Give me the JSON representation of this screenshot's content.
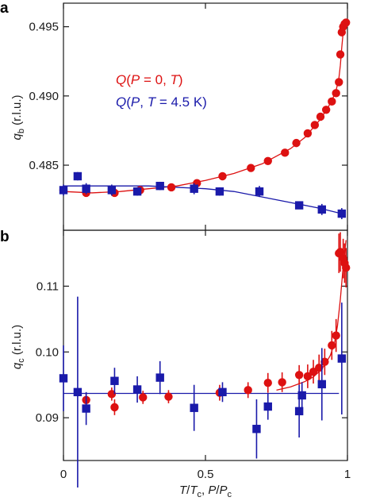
{
  "colors": {
    "red": "#dd1111",
    "blue": "#1a1aaa",
    "axis": "#1a1a1a"
  },
  "chart_data": [
    {
      "panel": "a",
      "type": "scatter",
      "ylabel_main": "q",
      "ylabel_sub": "b",
      "ylabel_unit": " (r.l.u.)",
      "xlim": [
        0,
        1.0
      ],
      "ylim": [
        0.4803,
        0.4967
      ],
      "yticks": [
        0.485,
        0.49,
        0.495
      ],
      "ytick_labels": [
        "0.485",
        "0.490",
        "0.495"
      ],
      "legend_position": "center-left",
      "series": [
        {
          "name": "Q(P = 0, T)",
          "legend_parts": [
            "Q",
            "(",
            "P",
            " = 0, ",
            "T",
            ")"
          ],
          "color": "#dd1111",
          "marker": "circle",
          "x": [
            0.0,
            0.08,
            0.18,
            0.27,
            0.38,
            0.47,
            0.56,
            0.66,
            0.72,
            0.78,
            0.82,
            0.86,
            0.885,
            0.905,
            0.925,
            0.945,
            0.96,
            0.97,
            0.975,
            0.98,
            0.985,
            0.99,
            0.995
          ],
          "y": [
            0.4832,
            0.483,
            0.483,
            0.4832,
            0.4834,
            0.4837,
            0.4842,
            0.4848,
            0.4853,
            0.4859,
            0.4866,
            0.4873,
            0.4879,
            0.4885,
            0.489,
            0.4896,
            0.4902,
            0.491,
            0.493,
            0.4946,
            0.495,
            0.4952,
            0.4953
          ],
          "fit_x": [
            0.0,
            0.1,
            0.2,
            0.3,
            0.4,
            0.5,
            0.6,
            0.7,
            0.8,
            0.85,
            0.9,
            0.93,
            0.95,
            0.96,
            0.97,
            0.975,
            0.98,
            0.985,
            0.99,
            0.995
          ],
          "fit_y": [
            0.4831,
            0.483,
            0.4831,
            0.4833,
            0.4835,
            0.4839,
            0.4844,
            0.4851,
            0.4862,
            0.487,
            0.4882,
            0.4891,
            0.4899,
            0.4904,
            0.4913,
            0.4922,
            0.4935,
            0.4946,
            0.4951,
            0.4953
          ]
        },
        {
          "name": "Q(P, T = 4.5 K)",
          "legend_parts": [
            "Q",
            "(",
            "P",
            ", ",
            "T",
            " = 4.5 K)"
          ],
          "color": "#1a1aaa",
          "marker": "square",
          "x": [
            0.0,
            0.05,
            0.08,
            0.17,
            0.26,
            0.34,
            0.46,
            0.55,
            0.69,
            0.83,
            0.91,
            0.98
          ],
          "y": [
            0.4832,
            0.4842,
            0.4833,
            0.4832,
            0.4831,
            0.4835,
            0.4833,
            0.4831,
            0.4831,
            0.4821,
            0.4818,
            0.4815
          ],
          "yerr": [
            0.0004,
            0.0003,
            0.0004,
            0.0004,
            0.0003,
            0.0003,
            0.0004,
            0.0003,
            0.0004,
            0.0002,
            0.0004,
            0.0004
          ],
          "fit_x": [
            0.0,
            0.1,
            0.2,
            0.3,
            0.4,
            0.5,
            0.6,
            0.7,
            0.8,
            0.9,
            0.98
          ],
          "fit_y": [
            0.4835,
            0.4835,
            0.4835,
            0.4835,
            0.4834,
            0.4833,
            0.4831,
            0.4827,
            0.4823,
            0.4819,
            0.4815
          ]
        }
      ]
    },
    {
      "panel": "b",
      "type": "scatter",
      "ylabel_main": "q",
      "ylabel_sub": "c",
      "ylabel_unit": " (r.l.u.)",
      "xlabel_parts": [
        "T",
        "/",
        "T",
        "c",
        ", ",
        "P",
        "/",
        "P",
        "c"
      ],
      "xlim": [
        0,
        1.0
      ],
      "ylim": [
        0.0835,
        0.1185
      ],
      "yticks": [
        0.09,
        0.1,
        0.11
      ],
      "ytick_labels": [
        "0.09",
        "0.10",
        "0.11"
      ],
      "xticks": [
        0,
        0.5,
        1
      ],
      "xtick_labels": [
        "0",
        "0.5",
        "1"
      ],
      "series": [
        {
          "name": "red",
          "color": "#dd1111",
          "marker": "circle",
          "x": [
            0.08,
            0.17,
            0.18,
            0.28,
            0.37,
            0.55,
            0.65,
            0.72,
            0.77,
            0.83,
            0.86,
            0.88,
            0.9,
            0.92,
            0.945,
            0.96,
            0.97,
            0.975,
            0.985,
            0.99,
            0.995
          ],
          "y": [
            0.0927,
            0.0936,
            0.0916,
            0.0931,
            0.0932,
            0.0938,
            0.0942,
            0.0953,
            0.0954,
            0.0965,
            0.0963,
            0.097,
            0.0976,
            0.0985,
            0.101,
            0.1025,
            0.115,
            0.1152,
            0.1142,
            0.1135,
            0.1128
          ],
          "yerr": [
            0.001,
            0.001,
            0.0012,
            0.001,
            0.001,
            0.0012,
            0.0012,
            0.0015,
            0.0015,
            0.0015,
            0.0018,
            0.0018,
            0.002,
            0.002,
            0.0022,
            0.0025,
            0.003,
            0.003,
            0.003,
            0.003,
            0.003
          ]
        },
        {
          "name": "blue",
          "color": "#1a1aaa",
          "marker": "square",
          "x": [
            0.0,
            0.05,
            0.08,
            0.18,
            0.26,
            0.34,
            0.46,
            0.56,
            0.68,
            0.72,
            0.83,
            0.84,
            0.91,
            0.98
          ],
          "y": [
            0.096,
            0.0939,
            0.0914,
            0.0956,
            0.0943,
            0.0961,
            0.0915,
            0.0939,
            0.0883,
            0.0917,
            0.091,
            0.0934,
            0.0951,
            0.099
          ],
          "yerr": [
            0.005,
            0.0145,
            0.0025,
            0.002,
            0.002,
            0.0025,
            0.0035,
            0.0015,
            0.0045,
            0.002,
            0.004,
            0.002,
            0.0055,
            0.0085
          ]
        }
      ],
      "fit": {
        "x": [
          0.0,
          0.97
        ],
        "y": [
          0.0937,
          0.0937
        ],
        "color": "#1a1aaa",
        "red_fit_x": [
          0.75,
          0.8,
          0.85,
          0.88,
          0.9,
          0.92,
          0.94,
          0.955,
          0.965,
          0.975,
          0.985,
          0.995
        ],
        "red_fit_y": [
          0.0942,
          0.0947,
          0.0955,
          0.0962,
          0.097,
          0.098,
          0.0995,
          0.1015,
          0.104,
          0.108,
          0.113,
          0.117
        ]
      }
    }
  ]
}
